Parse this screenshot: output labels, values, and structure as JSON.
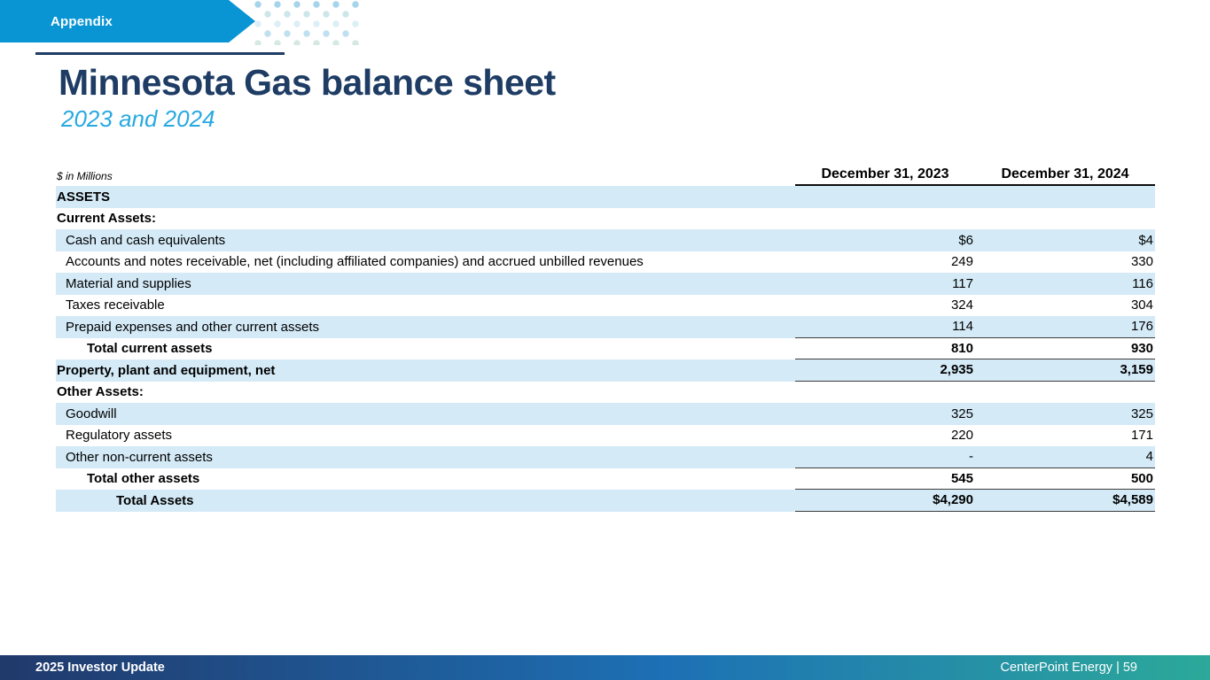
{
  "slide": {
    "banner_label": "Appendix",
    "title": "Minnesota Gas balance sheet",
    "subtitle": "2023 and 2024",
    "footer_left": "2025 Investor Update",
    "footer_right": "CenterPoint Energy | 59"
  },
  "colors": {
    "banner_blue": "#0995D4",
    "title_navy": "#1E3C64",
    "subtitle_blue": "#29A9E1",
    "row_shade": "#D4EAF7",
    "footer_gradient": [
      "#21396B",
      "#1D70B5",
      "#2CA99A"
    ],
    "dot_palette": [
      "#A6D4EC",
      "#C9E5F4",
      "#D6E9E1",
      "#BFE0F0",
      "#DCEFF7",
      "#CDE6EA"
    ]
  },
  "table": {
    "units_label": "$ in Millions",
    "columns": [
      "December 31, 2023",
      "December 31, 2024"
    ],
    "rows": [
      {
        "label": "ASSETS",
        "v2023": "",
        "v2024": "",
        "bold": true,
        "indent": 0,
        "shaded": true,
        "underline": false
      },
      {
        "label": "Current Assets:",
        "v2023": "",
        "v2024": "",
        "bold": true,
        "indent": 0,
        "shaded": false,
        "underline": false
      },
      {
        "label": "Cash and cash equivalents",
        "v2023": "$6",
        "v2024": "$4",
        "bold": false,
        "indent": 1,
        "shaded": true,
        "underline": false
      },
      {
        "label": "Accounts and notes receivable, net (including affiliated companies) and accrued unbilled revenues",
        "v2023": "249",
        "v2024": "330",
        "bold": false,
        "indent": 1,
        "shaded": false,
        "underline": false
      },
      {
        "label": "Material and supplies",
        "v2023": "117",
        "v2024": "116",
        "bold": false,
        "indent": 1,
        "shaded": true,
        "underline": false
      },
      {
        "label": "Taxes receivable",
        "v2023": "324",
        "v2024": "304",
        "bold": false,
        "indent": 1,
        "shaded": false,
        "underline": false
      },
      {
        "label": "Prepaid expenses and other current assets",
        "v2023": "114",
        "v2024": "176",
        "bold": false,
        "indent": 1,
        "shaded": true,
        "underline": true
      },
      {
        "label": "Total current assets",
        "v2023": "810",
        "v2024": "930",
        "bold": true,
        "indent": 2,
        "shaded": false,
        "underline": true
      },
      {
        "label": "Property, plant and equipment, net",
        "v2023": "2,935",
        "v2024": "3,159",
        "bold": true,
        "indent": 0,
        "shaded": true,
        "underline": true
      },
      {
        "label": "Other Assets:",
        "v2023": "",
        "v2024": "",
        "bold": true,
        "indent": 0,
        "shaded": false,
        "underline": false
      },
      {
        "label": "Goodwill",
        "v2023": "325",
        "v2024": "325",
        "bold": false,
        "indent": 1,
        "shaded": true,
        "underline": false
      },
      {
        "label": "Regulatory assets",
        "v2023": "220",
        "v2024": "171",
        "bold": false,
        "indent": 1,
        "shaded": false,
        "underline": false
      },
      {
        "label": "Other non-current assets",
        "v2023": "-",
        "v2024": "4",
        "bold": false,
        "indent": 1,
        "shaded": true,
        "underline": true
      },
      {
        "label": "Total other assets",
        "v2023": "545",
        "v2024": "500",
        "bold": true,
        "indent": 2,
        "shaded": false,
        "underline": true
      },
      {
        "label": "Total Assets",
        "v2023": "$4,290",
        "v2024": "$4,589",
        "bold": true,
        "indent": 3,
        "shaded": true,
        "underline": true
      }
    ]
  }
}
